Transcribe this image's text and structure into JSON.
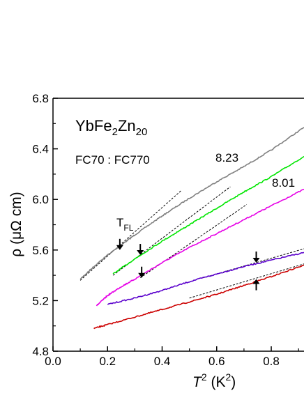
{
  "chart_data": {
    "type": "line",
    "title": "YbFe2Zn20",
    "subtitle": "FC70 : FC770",
    "xlabel": "T^2 (K^2)",
    "ylabel": "ρ (μΩ cm)",
    "xlim": [
      0.0,
      0.92
    ],
    "ylim": [
      4.8,
      6.8
    ],
    "xticks": [
      "0.0",
      "0.2",
      "0.4",
      "0.6",
      "0.8"
    ],
    "yticks": [
      "4.8",
      "5.2",
      "5.6",
      "6.0",
      "6.4",
      "6.8"
    ],
    "grid": false,
    "legend": "none",
    "series": [
      {
        "name": "8.23",
        "color": "#808080",
        "x": [
          0.1,
          0.15,
          0.2,
          0.25,
          0.3,
          0.4,
          0.5,
          0.6,
          0.7,
          0.8,
          0.92
        ],
        "y": [
          5.37,
          5.47,
          5.56,
          5.64,
          5.72,
          5.87,
          6.01,
          6.14,
          6.26,
          6.39,
          6.57
        ]
      },
      {
        "name": "8.01",
        "color": "#00e600",
        "x": [
          0.22,
          0.3,
          0.4,
          0.5,
          0.6,
          0.7,
          0.8,
          0.92
        ],
        "y": [
          5.41,
          5.53,
          5.67,
          5.8,
          5.93,
          6.06,
          6.18,
          6.34
        ]
      },
      {
        "color": "#e600e6",
        "x": [
          0.16,
          0.2,
          0.25,
          0.3,
          0.4,
          0.5,
          0.6,
          0.7,
          0.8,
          0.92
        ],
        "y": [
          5.16,
          5.24,
          5.31,
          5.37,
          5.5,
          5.62,
          5.73,
          5.84,
          5.95,
          6.08
        ]
      },
      {
        "color": "#5a00cc",
        "x": [
          0.2,
          0.3,
          0.4,
          0.5,
          0.6,
          0.7,
          0.8,
          0.92
        ],
        "y": [
          5.17,
          5.22,
          5.28,
          5.35,
          5.41,
          5.47,
          5.52,
          5.58
        ]
      },
      {
        "color": "#cc0000",
        "x": [
          0.15,
          0.2,
          0.3,
          0.4,
          0.5,
          0.6,
          0.7,
          0.8,
          0.92
        ],
        "y": [
          4.98,
          5.01,
          5.07,
          5.13,
          5.19,
          5.25,
          5.32,
          5.39,
          5.48
        ]
      }
    ],
    "fit_lines": [
      {
        "x": [
          0.1,
          0.47
        ],
        "y": [
          5.36,
          6.07
        ]
      },
      {
        "x": [
          0.22,
          0.65
        ],
        "y": [
          5.4,
          6.1
        ]
      },
      {
        "x": [
          0.32,
          0.71
        ],
        "y": [
          5.38,
          5.96
        ]
      },
      {
        "x": [
          0.55,
          0.92
        ],
        "y": [
          5.38,
          5.61
        ]
      },
      {
        "x": [
          0.5,
          0.92
        ],
        "y": [
          5.22,
          5.49
        ]
      }
    ],
    "annotations": {
      "tfl": "T",
      "tfl_sub": "FL",
      "label_823": "8.23",
      "label_801": "8.01"
    },
    "arrows": [
      {
        "x": 0.245,
        "y": 5.6,
        "dir": "down"
      },
      {
        "x": 0.32,
        "y": 5.56,
        "dir": "down"
      },
      {
        "x": 0.325,
        "y": 5.38,
        "dir": "down"
      },
      {
        "x": 0.745,
        "y": 5.5,
        "dir": "down"
      },
      {
        "x": 0.745,
        "y": 5.37,
        "dir": "up"
      }
    ]
  }
}
